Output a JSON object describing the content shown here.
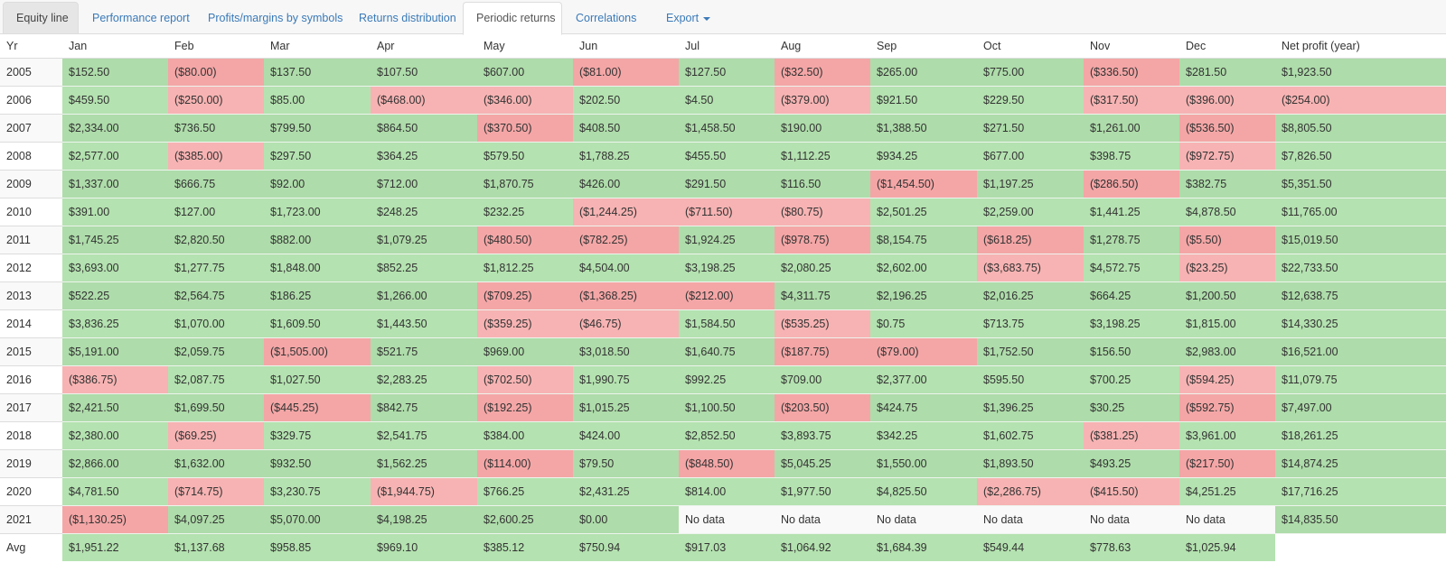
{
  "tabs": [
    {
      "label": "Equity line"
    },
    {
      "label": "Performance report"
    },
    {
      "label": "Profits/margins by symbols"
    },
    {
      "label": "Returns distribution"
    },
    {
      "label": "Periodic returns",
      "active": true
    },
    {
      "label": "Correlations"
    },
    {
      "label": "Export"
    }
  ],
  "colors": {
    "positive": "#aedcaa",
    "negative": "#f4a6a6",
    "no_data": "#f9f9f9",
    "link": "#3a7ab8"
  },
  "table": {
    "headers": [
      "Yr",
      "Jan",
      "Feb",
      "Mar",
      "Apr",
      "May",
      "Jun",
      "Jul",
      "Aug",
      "Sep",
      "Oct",
      "Nov",
      "Dec",
      "Net profit (year)"
    ],
    "rows": [
      [
        "2005",
        "$152.50",
        "($80.00)",
        "$137.50",
        "$107.50",
        "$607.00",
        "($81.00)",
        "$127.50",
        "($32.50)",
        "$265.00",
        "$775.00",
        "($336.50)",
        "$281.50",
        "$1,923.50"
      ],
      [
        "2006",
        "$459.50",
        "($250.00)",
        "$85.00",
        "($468.00)",
        "($346.00)",
        "$202.50",
        "$4.50",
        "($379.00)",
        "$921.50",
        "$229.50",
        "($317.50)",
        "($396.00)",
        "($254.00)"
      ],
      [
        "2007",
        "$2,334.00",
        "$736.50",
        "$799.50",
        "$864.50",
        "($370.50)",
        "$408.50",
        "$1,458.50",
        "$190.00",
        "$1,388.50",
        "$271.50",
        "$1,261.00",
        "($536.50)",
        "$8,805.50"
      ],
      [
        "2008",
        "$2,577.00",
        "($385.00)",
        "$297.50",
        "$364.25",
        "$579.50",
        "$1,788.25",
        "$455.50",
        "$1,112.25",
        "$934.25",
        "$677.00",
        "$398.75",
        "($972.75)",
        "$7,826.50"
      ],
      [
        "2009",
        "$1,337.00",
        "$666.75",
        "$92.00",
        "$712.00",
        "$1,870.75",
        "$426.00",
        "$291.50",
        "$116.50",
        "($1,454.50)",
        "$1,197.25",
        "($286.50)",
        "$382.75",
        "$5,351.50"
      ],
      [
        "2010",
        "$391.00",
        "$127.00",
        "$1,723.00",
        "$248.25",
        "$232.25",
        "($1,244.25)",
        "($711.50)",
        "($80.75)",
        "$2,501.25",
        "$2,259.00",
        "$1,441.25",
        "$4,878.50",
        "$11,765.00"
      ],
      [
        "2011",
        "$1,745.25",
        "$2,820.50",
        "$882.00",
        "$1,079.25",
        "($480.50)",
        "($782.25)",
        "$1,924.25",
        "($978.75)",
        "$8,154.75",
        "($618.25)",
        "$1,278.75",
        "($5.50)",
        "$15,019.50"
      ],
      [
        "2012",
        "$3,693.00",
        "$1,277.75",
        "$1,848.00",
        "$852.25",
        "$1,812.25",
        "$4,504.00",
        "$3,198.25",
        "$2,080.25",
        "$2,602.00",
        "($3,683.75)",
        "$4,572.75",
        "($23.25)",
        "$22,733.50"
      ],
      [
        "2013",
        "$522.25",
        "$2,564.75",
        "$186.25",
        "$1,266.00",
        "($709.25)",
        "($1,368.25)",
        "($212.00)",
        "$4,311.75",
        "$2,196.25",
        "$2,016.25",
        "$664.25",
        "$1,200.50",
        "$12,638.75"
      ],
      [
        "2014",
        "$3,836.25",
        "$1,070.00",
        "$1,609.50",
        "$1,443.50",
        "($359.25)",
        "($46.75)",
        "$1,584.50",
        "($535.25)",
        "$0.75",
        "$713.75",
        "$3,198.25",
        "$1,815.00",
        "$14,330.25"
      ],
      [
        "2015",
        "$5,191.00",
        "$2,059.75",
        "($1,505.00)",
        "$521.75",
        "$969.00",
        "$3,018.50",
        "$1,640.75",
        "($187.75)",
        "($79.00)",
        "$1,752.50",
        "$156.50",
        "$2,983.00",
        "$16,521.00"
      ],
      [
        "2016",
        "($386.75)",
        "$2,087.75",
        "$1,027.50",
        "$2,283.25",
        "($702.50)",
        "$1,990.75",
        "$992.25",
        "$709.00",
        "$2,377.00",
        "$595.50",
        "$700.25",
        "($594.25)",
        "$11,079.75"
      ],
      [
        "2017",
        "$2,421.50",
        "$1,699.50",
        "($445.25)",
        "$842.75",
        "($192.25)",
        "$1,015.25",
        "$1,100.50",
        "($203.50)",
        "$424.75",
        "$1,396.25",
        "$30.25",
        "($592.75)",
        "$7,497.00"
      ],
      [
        "2018",
        "$2,380.00",
        "($69.25)",
        "$329.75",
        "$2,541.75",
        "$384.00",
        "$424.00",
        "$2,852.50",
        "$3,893.75",
        "$342.25",
        "$1,602.75",
        "($381.25)",
        "$3,961.00",
        "$18,261.25"
      ],
      [
        "2019",
        "$2,866.00",
        "$1,632.00",
        "$932.50",
        "$1,562.25",
        "($114.00)",
        "$79.50",
        "($848.50)",
        "$5,045.25",
        "$1,550.00",
        "$1,893.50",
        "$493.25",
        "($217.50)",
        "$14,874.25"
      ],
      [
        "2020",
        "$4,781.50",
        "($714.75)",
        "$3,230.75",
        "($1,944.75)",
        "$766.25",
        "$2,431.25",
        "$814.00",
        "$1,977.50",
        "$4,825.50",
        "($2,286.75)",
        "($415.50)",
        "$4,251.25",
        "$17,716.25"
      ],
      [
        "2021",
        "($1,130.25)",
        "$4,097.25",
        "$5,070.00",
        "$4,198.25",
        "$2,600.25",
        "$0.00",
        "No data",
        "No data",
        "No data",
        "No data",
        "No data",
        "No data",
        "$14,835.50"
      ],
      [
        "Avg",
        "$1,951.22",
        "$1,137.68",
        "$958.85",
        "$969.10",
        "$385.12",
        "$750.94",
        "$917.03",
        "$1,064.92",
        "$1,684.39",
        "$549.44",
        "$778.63",
        "$1,025.94",
        ""
      ]
    ]
  }
}
